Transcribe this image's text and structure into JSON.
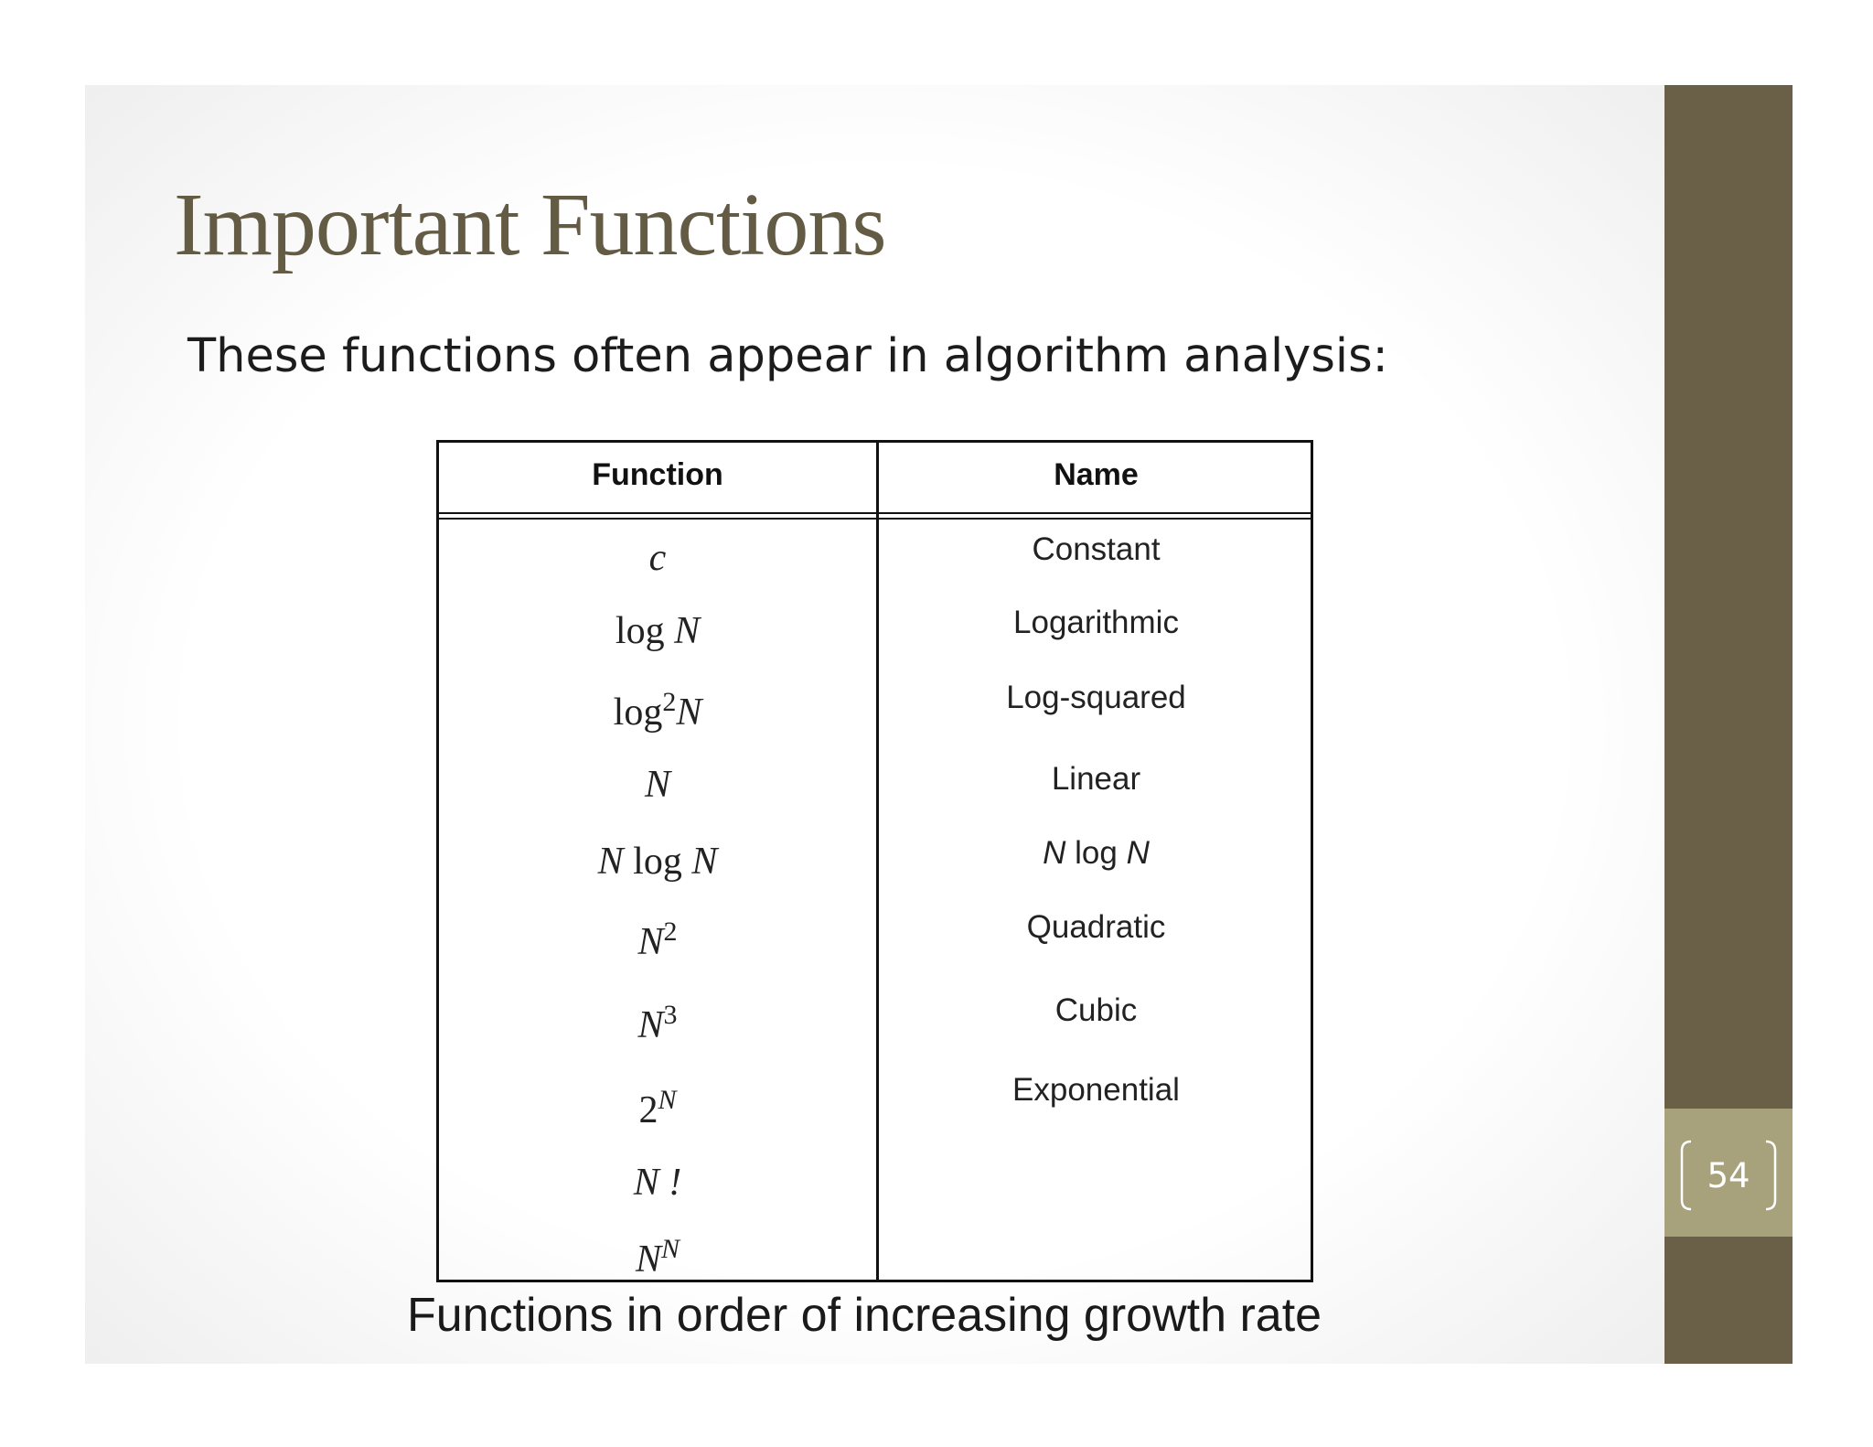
{
  "title": "Important Functions",
  "subtitle": "These functions often appear in algorithm analysis:",
  "table": {
    "headers": {
      "function": "Function",
      "name": "Name"
    },
    "rows": [
      {
        "function": "c",
        "name": "Constant"
      },
      {
        "function": "log N",
        "name": "Logarithmic"
      },
      {
        "function": "log2N",
        "name": "Log-squared"
      },
      {
        "function": "N",
        "name": "Linear"
      },
      {
        "function": "N log N",
        "name": "N log N"
      },
      {
        "function": "N2",
        "name": "Quadratic"
      },
      {
        "function": "N3",
        "name": "Cubic"
      },
      {
        "function": "2N",
        "name": "Exponential"
      },
      {
        "function": "N !",
        "name": ""
      },
      {
        "function": "NN",
        "name": ""
      }
    ]
  },
  "caption": "Functions in order of increasing growth rate",
  "slide_number": "54",
  "colors": {
    "title": "#635b43",
    "side_band": "#6a5f47",
    "number_box": "#a8a27c"
  }
}
